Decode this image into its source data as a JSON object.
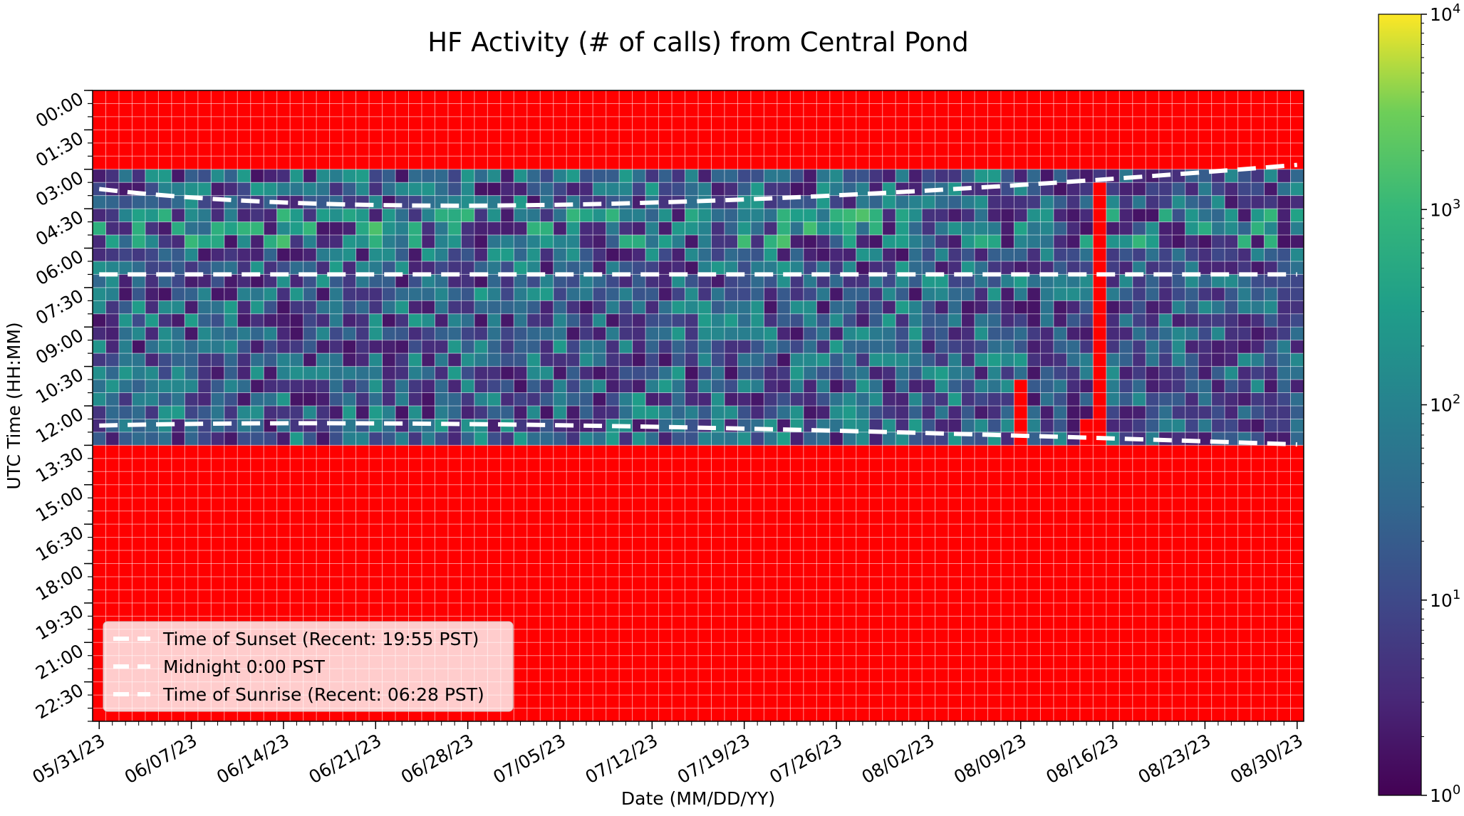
{
  "chart_data": {
    "type": "heatmap",
    "title": "HF Activity (# of calls) from Central Pond",
    "xlabel": "Date (MM/DD/YY)",
    "ylabel": "UTC Time (HH:MM)",
    "x_ticks": [
      "05/31/23",
      "06/07/23",
      "06/14/23",
      "06/21/23",
      "06/28/23",
      "07/05/23",
      "07/12/23",
      "07/19/23",
      "07/26/23",
      "08/02/23",
      "08/09/23",
      "08/16/23",
      "08/23/23",
      "08/30/23"
    ],
    "y_ticks": [
      "00:00",
      "01:30",
      "03:00",
      "04:30",
      "06:00",
      "07:30",
      "09:00",
      "10:30",
      "12:00",
      "13:30",
      "15:00",
      "16:30",
      "18:00",
      "19:30",
      "21:00",
      "22:30"
    ],
    "x_range": [
      "05/31/23",
      "08/30/23"
    ],
    "n_days": 92,
    "n_time_bins": 48,
    "bin_minutes": 30,
    "colorbar": {
      "scale": "log",
      "ticks": [
        "10^0",
        "10^1",
        "10^2",
        "10^3",
        "10^4"
      ],
      "range": [
        1,
        10000
      ],
      "colormap": "viridis"
    },
    "no_data_color": "#ff0000",
    "active_window_utc": [
      "03:00",
      "13:30"
    ],
    "red_gaps": [
      {
        "date": "08/09/23",
        "from": "11:00",
        "to": "13:30"
      },
      {
        "date": "08/14/23",
        "from": "12:30",
        "to": "13:30"
      },
      {
        "date": "08/15/23",
        "from": "03:30",
        "to": "13:30"
      }
    ],
    "value_estimates": {
      "typical_range": [
        3,
        300
      ],
      "peak_around_hour_utc": "05:00",
      "peak_max": 1000
    },
    "lines": [
      {
        "name": "Time of Sunset (Recent: 19:55 PST)",
        "color": "#ffffff",
        "style": "dashed",
        "y_start_utc": "03:45",
        "y_min_utc": "04:20",
        "y_end_utc": "02:50"
      },
      {
        "name": "Midnight 0:00 PST",
        "color": "#ffffff",
        "style": "dashed",
        "y_start_utc": "07:00",
        "y_end_utc": "07:00"
      },
      {
        "name": "Time of Sunrise (Recent: 06:28 PST)",
        "color": "#ffffff",
        "style": "dashed",
        "y_start_utc": "12:45",
        "y_max_utc": "13:28",
        "y_end_utc": "13:28"
      }
    ],
    "legend_position": "lower-left",
    "grid": true
  }
}
